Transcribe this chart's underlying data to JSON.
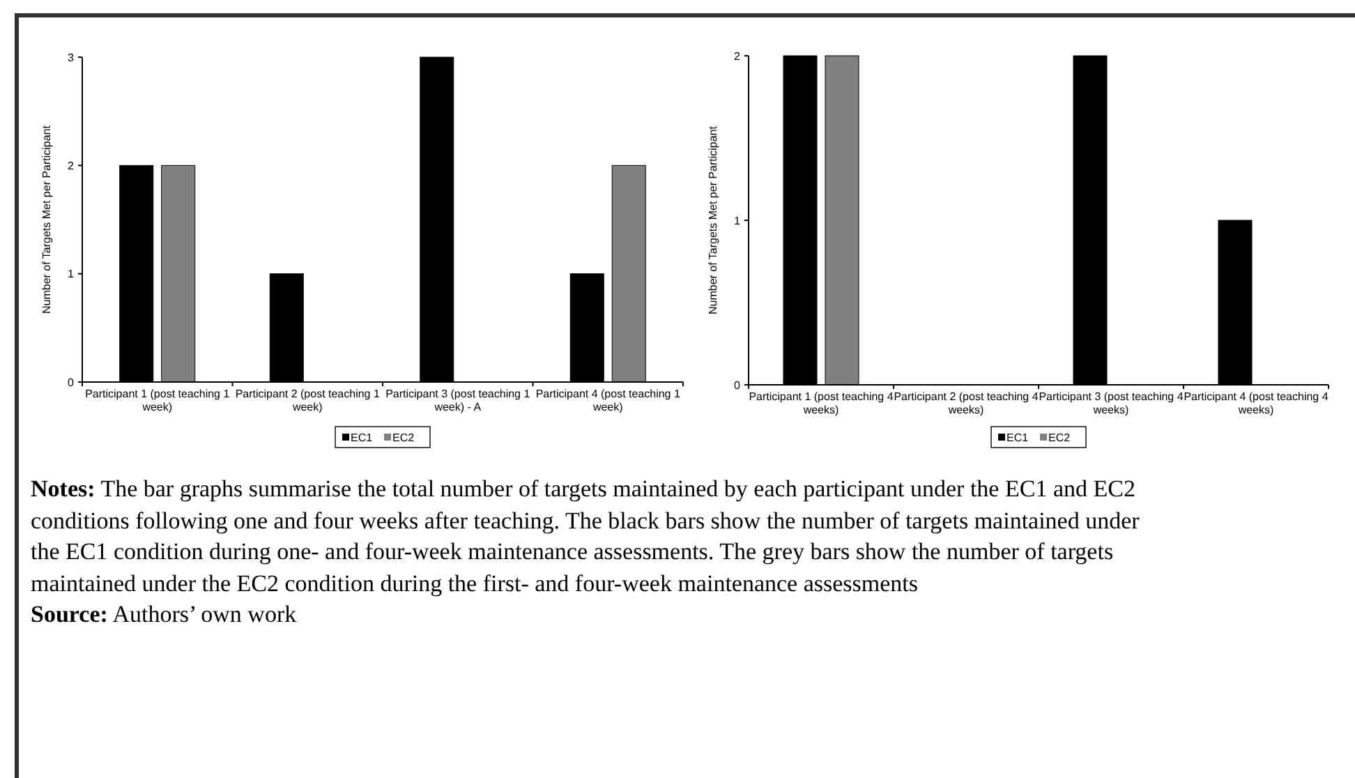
{
  "chart_data": [
    {
      "type": "bar",
      "ylabel": "Number of Targets Met per Participant",
      "categories": [
        "Participant 1 (post teaching 1 week)",
        "Participant 2 (post teaching 1 week)",
        "Participant 3 (post teaching 1 week) - A",
        "Participant 4 (post teaching 1 week)"
      ],
      "series": [
        {
          "name": "EC1",
          "color": "#000000",
          "values": [
            2,
            1,
            3,
            1
          ]
        },
        {
          "name": "EC2",
          "color": "#808080",
          "values": [
            2,
            0,
            0,
            2
          ]
        }
      ],
      "ylim": [
        0,
        3
      ],
      "yticks": [
        0,
        1,
        2,
        3
      ],
      "grid": false,
      "legend": "bottom"
    },
    {
      "type": "bar",
      "ylabel": "Number of Targets Met per Participant",
      "categories": [
        "Participant 1 (post teaching 4 weeks)",
        "Participant 2 (post teaching 4 weeks)",
        "Participant 3 (post teaching 4 weeks)",
        "Participant 4 (post teaching 4 weeks)"
      ],
      "series": [
        {
          "name": "EC1",
          "color": "#000000",
          "values": [
            2,
            0,
            2,
            1
          ]
        },
        {
          "name": "EC2",
          "color": "#808080",
          "values": [
            2,
            0,
            0,
            0
          ]
        }
      ],
      "ylim": [
        0,
        2
      ],
      "yticks": [
        0,
        1,
        2
      ],
      "grid": false,
      "legend": "bottom",
      "annotations": [
        "Notes: The bar graphs summarise the total number of targets maintained by each participant under the EC1 and EC2 conditions following one and four weeks after teaching. The black bars show the number of targets maintained under the EC1 condition during one- and four-week maintenance assessments. The grey bars show the number of targets maintained under the EC2 condition during the first- and four-week maintenance assessments",
        "Source: Authors’ own work"
      ]
    }
  ]
}
